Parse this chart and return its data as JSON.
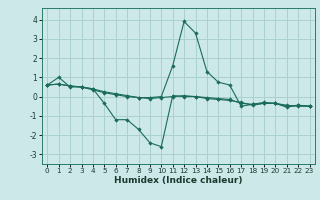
{
  "xlabel": "Humidex (Indice chaleur)",
  "bg_color": "#cce8e8",
  "grid_color": "#aad0d0",
  "line_color": "#1a6b5a",
  "xlim": [
    -0.5,
    23.5
  ],
  "ylim": [
    -3.5,
    4.6
  ],
  "xticks": [
    0,
    1,
    2,
    3,
    4,
    5,
    6,
    7,
    8,
    9,
    10,
    11,
    12,
    13,
    14,
    15,
    16,
    17,
    18,
    19,
    20,
    21,
    22,
    23
  ],
  "yticks": [
    -3,
    -2,
    -1,
    0,
    1,
    2,
    3,
    4
  ],
  "series1_x": [
    0,
    1,
    2,
    3,
    4,
    5,
    6,
    7,
    8,
    9,
    10,
    11,
    12,
    13,
    14,
    15,
    16,
    17,
    18,
    19,
    20,
    21,
    22,
    23
  ],
  "series1_y": [
    0.6,
    1.0,
    0.5,
    0.5,
    0.4,
    -0.35,
    -1.2,
    -1.2,
    -1.7,
    -2.4,
    -2.6,
    0.05,
    0.0,
    0.0,
    -0.1,
    -0.15,
    -0.2,
    -0.3,
    -0.45,
    -0.35,
    -0.35,
    -0.45,
    -0.5,
    -0.5
  ],
  "series2_x": [
    0,
    1,
    2,
    3,
    4,
    5,
    6,
    7,
    8,
    9,
    10,
    11,
    12,
    13,
    14,
    15,
    16,
    17,
    18,
    19,
    20,
    21,
    22,
    23
  ],
  "series2_y": [
    0.6,
    0.65,
    0.55,
    0.5,
    0.4,
    0.25,
    0.15,
    0.05,
    -0.05,
    -0.05,
    0.0,
    1.6,
    3.9,
    3.3,
    1.3,
    0.75,
    0.6,
    -0.5,
    -0.4,
    -0.3,
    -0.35,
    -0.55,
    -0.45,
    -0.5
  ],
  "series3_x": [
    0,
    1,
    2,
    3,
    4,
    5,
    6,
    7,
    8,
    9,
    10,
    11,
    12,
    13,
    14,
    15,
    16,
    17,
    18,
    19,
    20,
    21,
    22,
    23
  ],
  "series3_y": [
    0.6,
    0.65,
    0.55,
    0.5,
    0.35,
    0.2,
    0.1,
    0.0,
    -0.05,
    -0.1,
    -0.05,
    0.0,
    0.05,
    0.0,
    -0.05,
    -0.1,
    -0.15,
    -0.35,
    -0.4,
    -0.35,
    -0.35,
    -0.5,
    -0.45,
    -0.5
  ],
  "tick_fontsize": 5.2,
  "xlabel_fontsize": 6.5
}
